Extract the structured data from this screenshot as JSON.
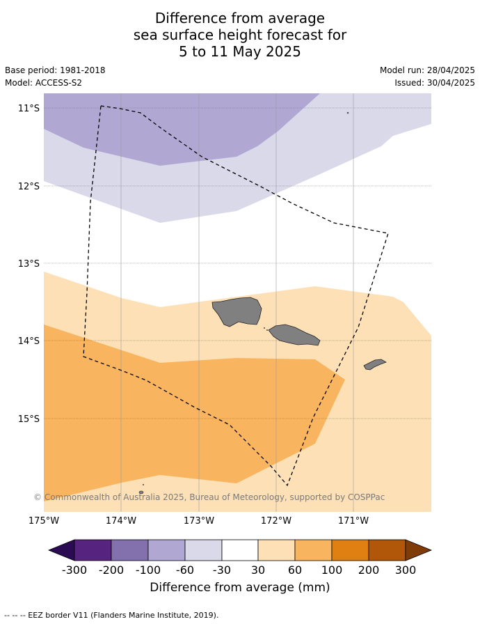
{
  "title": {
    "line1": "Difference from average",
    "line2": "sea surface height forecast for",
    "line3": "5 to 11 May 2025"
  },
  "meta": {
    "base_period": "Base period: 1981-2018",
    "model": "Model: ACCESS-S2",
    "model_run": "Model run: 28/04/2025",
    "issued": "Issued: 30/04/2025"
  },
  "map": {
    "lon_range": [
      -175,
      -170
    ],
    "lat_range": [
      -16.2,
      -10.8
    ],
    "lat_ticks": [
      "11°S",
      "12°S",
      "13°S",
      "14°S",
      "15°S"
    ],
    "lon_ticks": [
      "175°W",
      "174°W",
      "173°W",
      "172°W",
      "171°W"
    ],
    "copyright": "© Commonwealth of Australia 2025, Bureau of Meteorology, supported by COSPPac"
  },
  "colorbar": {
    "ticks": [
      "-300",
      "-200",
      "-100",
      "-60",
      "-30",
      "30",
      "60",
      "100",
      "200",
      "300"
    ],
    "colors": [
      "#2c0b55",
      "#56237f",
      "#8371ad",
      "#b0a8d2",
      "#d9d9ea",
      "#ffffff",
      "#fde0b6",
      "#f9b45f",
      "#e08012",
      "#b05709",
      "#7f3b08"
    ],
    "label": "Difference from average (mm)"
  },
  "footnote": "--  --  -- EEZ border V11 (Flanders Marine Institute, 2019)."
}
